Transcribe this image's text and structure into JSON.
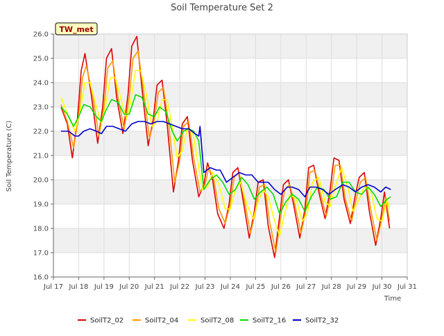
{
  "chart_data": {
    "type": "line",
    "title": "Soil Temperature Set 2",
    "xlabel": "Time",
    "ylabel": "Soil Temperature (C)",
    "xlim": [
      17,
      31
    ],
    "ylim": [
      16.0,
      26.0
    ],
    "x_ticks": [
      17,
      18,
      19,
      20,
      21,
      22,
      23,
      24,
      25,
      26,
      27,
      28,
      29,
      30,
      31
    ],
    "x_tick_labels": [
      "Jul 17",
      "Jul 18",
      "Jul 19",
      "Jul 20",
      "Jul 21",
      "Jul 22",
      "Jul 23",
      "Jul 24",
      "Jul 25",
      "Jul 26",
      "Jul 27",
      "Jul 28",
      "Jul 29",
      "Jul 30",
      "Jul 31"
    ],
    "y_ticks": [
      16.0,
      17.0,
      18.0,
      19.0,
      20.0,
      21.0,
      22.0,
      23.0,
      24.0,
      25.0,
      26.0
    ],
    "y_tick_labels": [
      "16.0",
      "17.0",
      "18.0",
      "19.0",
      "20.0",
      "21.0",
      "22.0",
      "23.0",
      "24.0",
      "25.0",
      "26.0"
    ],
    "grid": true,
    "background_bands": true,
    "legend_position": "bottom",
    "annotation": "TW_met",
    "series": [
      {
        "name": "SoilT2_02",
        "color": "#dd0000",
        "x": [
          17.3,
          17.55,
          17.75,
          17.95,
          18.1,
          18.25,
          18.5,
          18.75,
          18.95,
          19.1,
          19.3,
          19.5,
          19.75,
          19.95,
          20.1,
          20.3,
          20.5,
          20.75,
          20.95,
          21.1,
          21.3,
          21.5,
          21.75,
          21.95,
          22.1,
          22.3,
          22.5,
          22.75,
          22.95,
          23.1,
          23.3,
          23.5,
          23.75,
          23.95,
          24.1,
          24.3,
          24.5,
          24.75,
          24.95,
          25.1,
          25.3,
          25.5,
          25.75,
          25.95,
          26.1,
          26.3,
          26.5,
          26.75,
          26.95,
          27.1,
          27.3,
          27.5,
          27.75,
          27.95,
          28.1,
          28.3,
          28.5,
          28.75,
          28.95,
          29.1,
          29.3,
          29.5,
          29.75,
          29.95,
          30.1,
          30.3
        ],
        "y": [
          23.0,
          22.3,
          20.9,
          22.5,
          24.5,
          25.2,
          23.5,
          21.5,
          23.0,
          25.0,
          25.4,
          23.4,
          21.9,
          23.5,
          25.5,
          25.9,
          23.8,
          21.4,
          22.5,
          23.9,
          24.1,
          22.3,
          19.5,
          20.8,
          22.3,
          22.6,
          20.8,
          19.3,
          19.8,
          20.7,
          20.0,
          18.6,
          18.0,
          19.0,
          20.3,
          20.5,
          19.2,
          17.6,
          18.7,
          19.9,
          20.0,
          18.1,
          16.8,
          18.5,
          19.8,
          20.0,
          19.0,
          17.6,
          18.8,
          20.5,
          20.6,
          19.5,
          18.4,
          19.6,
          20.9,
          20.8,
          19.2,
          18.2,
          19.4,
          20.1,
          20.3,
          18.7,
          17.3,
          18.4,
          19.5,
          18.0
        ]
      },
      {
        "name": "SoilT2_04",
        "color": "#ff9900",
        "x": [
          17.3,
          17.55,
          17.8,
          18.0,
          18.15,
          18.3,
          18.55,
          18.8,
          19.0,
          19.15,
          19.35,
          19.55,
          19.8,
          20.0,
          20.15,
          20.35,
          20.55,
          20.8,
          21.0,
          21.15,
          21.35,
          21.55,
          21.8,
          22.0,
          22.15,
          22.35,
          22.55,
          22.8,
          23.0,
          23.15,
          23.35,
          23.55,
          23.8,
          24.0,
          24.15,
          24.35,
          24.55,
          24.8,
          25.0,
          25.15,
          25.35,
          25.55,
          25.8,
          26.0,
          26.15,
          26.35,
          26.55,
          26.8,
          27.0,
          27.15,
          27.35,
          27.55,
          27.8,
          28.0,
          28.15,
          28.35,
          28.55,
          28.8,
          29.0,
          29.15,
          29.35,
          29.55,
          29.8,
          30.0,
          30.15,
          30.3
        ],
        "y": [
          23.1,
          22.4,
          21.3,
          22.6,
          24.2,
          24.7,
          23.5,
          21.8,
          23.0,
          24.6,
          24.9,
          23.4,
          22.1,
          23.4,
          25.0,
          25.3,
          23.8,
          21.7,
          22.5,
          23.6,
          23.8,
          22.4,
          19.9,
          20.8,
          22.2,
          22.4,
          20.9,
          19.5,
          19.8,
          20.5,
          20.0,
          18.8,
          18.2,
          19.0,
          20.1,
          20.3,
          19.2,
          17.8,
          18.7,
          19.7,
          19.8,
          18.3,
          17.0,
          18.5,
          19.6,
          19.8,
          19.0,
          17.8,
          18.8,
          20.3,
          20.4,
          19.5,
          18.5,
          19.5,
          20.6,
          20.6,
          19.2,
          18.3,
          19.3,
          19.9,
          20.1,
          18.8,
          17.5,
          18.4,
          19.3,
          18.3
        ]
      },
      {
        "name": "SoilT2_08",
        "color": "#ffff00",
        "x": [
          17.3,
          17.6,
          17.85,
          18.05,
          18.25,
          18.45,
          18.7,
          18.9,
          19.05,
          19.25,
          19.45,
          19.7,
          19.9,
          20.05,
          20.25,
          20.45,
          20.7,
          20.9,
          21.1,
          21.3,
          21.5,
          21.7,
          21.9,
          22.1,
          22.3,
          22.5,
          22.7,
          22.9,
          23.1,
          23.3,
          23.55,
          23.8,
          24.0,
          24.2,
          24.4,
          24.65,
          24.9,
          25.1,
          25.3,
          25.5,
          25.75,
          25.95,
          26.15,
          26.35,
          26.6,
          26.85,
          27.05,
          27.25,
          27.5,
          27.75,
          27.95,
          28.15,
          28.4,
          28.65,
          28.85,
          29.1,
          29.3,
          29.55,
          29.8,
          30.0,
          30.2,
          30.3
        ],
        "y": [
          23.4,
          22.6,
          22.0,
          22.8,
          24.0,
          24.0,
          23.0,
          22.3,
          23.0,
          24.2,
          24.2,
          23.2,
          22.5,
          23.2,
          24.5,
          24.5,
          23.4,
          22.2,
          22.4,
          23.3,
          23.3,
          22.2,
          20.9,
          21.2,
          22.1,
          22.0,
          20.8,
          19.6,
          19.7,
          20.3,
          19.8,
          18.8,
          18.8,
          19.6,
          19.9,
          19.0,
          18.4,
          19.1,
          19.6,
          19.3,
          18.3,
          17.7,
          18.6,
          19.4,
          19.2,
          18.3,
          18.6,
          19.9,
          20.1,
          19.1,
          18.9,
          19.7,
          20.5,
          19.7,
          18.7,
          19.2,
          19.7,
          19.6,
          18.4,
          18.3,
          19.2,
          18.8
        ]
      },
      {
        "name": "SoilT2_16",
        "color": "#00dd00",
        "x": [
          17.3,
          17.55,
          17.8,
          18.0,
          18.2,
          18.45,
          18.7,
          18.9,
          19.05,
          19.3,
          19.55,
          19.8,
          20.0,
          20.25,
          20.5,
          20.75,
          21.0,
          21.2,
          21.45,
          21.7,
          21.9,
          22.15,
          22.35,
          22.55,
          22.75,
          22.95,
          23.2,
          23.45,
          23.7,
          23.95,
          24.2,
          24.45,
          24.7,
          24.95,
          25.2,
          25.45,
          25.7,
          25.95,
          26.2,
          26.45,
          26.7,
          26.95,
          27.2,
          27.45,
          27.7,
          27.95,
          28.2,
          28.45,
          28.7,
          28.95,
          29.2,
          29.45,
          29.7,
          29.95,
          30.2,
          30.35
        ],
        "y": [
          23.0,
          22.7,
          22.2,
          22.6,
          23.1,
          23.0,
          22.6,
          22.4,
          22.8,
          23.3,
          23.2,
          22.7,
          22.7,
          23.5,
          23.4,
          22.7,
          22.6,
          23.0,
          22.8,
          22.0,
          21.6,
          22.0,
          22.1,
          22.0,
          21.6,
          19.6,
          20.0,
          20.2,
          19.9,
          19.4,
          19.6,
          20.1,
          19.8,
          19.2,
          19.5,
          19.7,
          19.4,
          18.6,
          19.1,
          19.4,
          19.2,
          18.7,
          19.3,
          19.7,
          19.6,
          19.2,
          19.3,
          19.9,
          19.9,
          19.5,
          19.4,
          19.7,
          19.4,
          18.9,
          19.2,
          19.3
        ]
      },
      {
        "name": "SoilT2_32",
        "color": "#0000cc",
        "x": [
          17.3,
          17.6,
          17.85,
          18.0,
          18.2,
          18.45,
          18.7,
          18.9,
          19.1,
          19.35,
          19.6,
          19.85,
          20.1,
          20.35,
          20.6,
          20.85,
          21.1,
          21.35,
          21.6,
          21.85,
          22.1,
          22.35,
          22.6,
          22.75,
          22.8,
          22.95,
          23.2,
          23.45,
          23.6,
          23.85,
          24.1,
          24.35,
          24.6,
          24.85,
          25.1,
          25.3,
          25.5,
          25.75,
          26.0,
          26.25,
          26.45,
          26.7,
          26.95,
          27.15,
          27.4,
          27.65,
          27.9,
          28.15,
          28.45,
          28.7,
          28.95,
          29.2,
          29.45,
          29.7,
          29.95,
          30.15,
          30.35
        ],
        "y": [
          22.0,
          22.0,
          21.8,
          21.8,
          22.0,
          22.1,
          22.0,
          21.9,
          22.2,
          22.2,
          22.1,
          22.0,
          22.3,
          22.4,
          22.4,
          22.3,
          22.4,
          22.4,
          22.3,
          22.2,
          22.1,
          22.1,
          21.9,
          21.8,
          22.2,
          20.3,
          20.5,
          20.4,
          20.4,
          19.9,
          20.1,
          20.3,
          20.2,
          20.2,
          19.9,
          19.9,
          19.9,
          19.6,
          19.4,
          19.7,
          19.7,
          19.6,
          19.3,
          19.7,
          19.7,
          19.6,
          19.4,
          19.6,
          19.8,
          19.7,
          19.5,
          19.7,
          19.8,
          19.7,
          19.5,
          19.7,
          19.6
        ]
      }
    ]
  }
}
